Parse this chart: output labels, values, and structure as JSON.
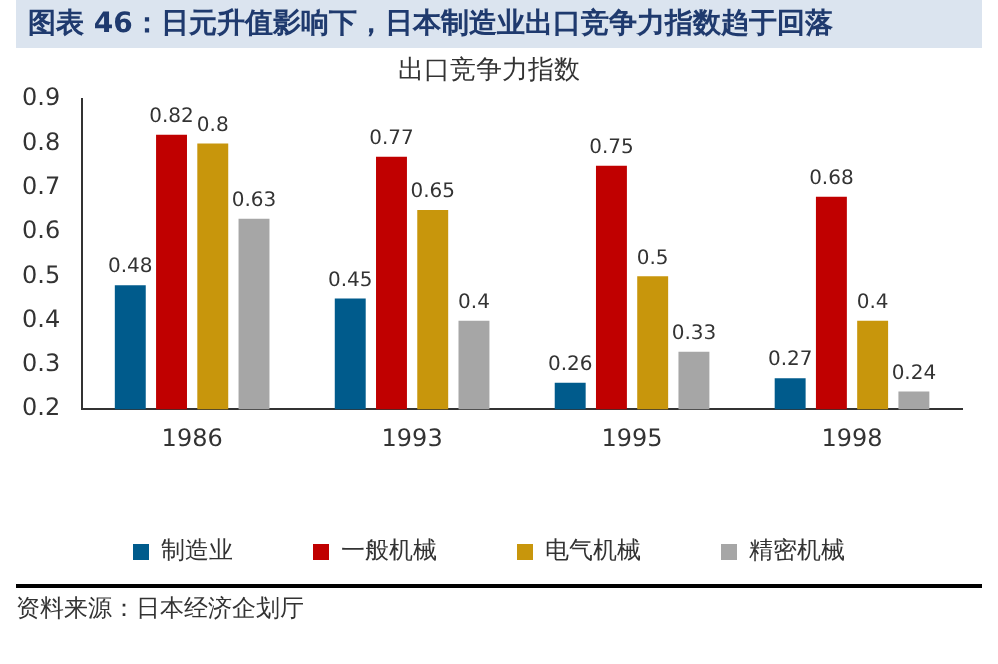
{
  "chart_data": {
    "type": "bar",
    "title": "图表 46：日元升值影响下，日本制造业出口竞争力指数趋于回落",
    "subtitle": "出口竞争力指数",
    "categories": [
      "1986",
      "1993",
      "1995",
      "1998"
    ],
    "series": [
      {
        "name": "制造业",
        "color": "#005b8c",
        "values": [
          0.48,
          0.45,
          0.26,
          0.27
        ]
      },
      {
        "name": "一般机械",
        "color": "#c00000",
        "values": [
          0.82,
          0.77,
          0.75,
          0.68
        ]
      },
      {
        "name": "电气机械",
        "color": "#c8960c",
        "values": [
          0.8,
          0.65,
          0.5,
          0.4
        ]
      },
      {
        "name": "精密机械",
        "color": "#a6a6a6",
        "values": [
          0.63,
          0.4,
          0.33,
          0.24
        ]
      }
    ],
    "ylim": [
      0.2,
      0.9
    ],
    "yticks": [
      0.2,
      0.3,
      0.4,
      0.5,
      0.6,
      0.7,
      0.8,
      0.9
    ],
    "grid": false,
    "legend": "bottom",
    "data_labels": true,
    "annotations": [
      "资料来源：日本经济企划厅"
    ]
  }
}
